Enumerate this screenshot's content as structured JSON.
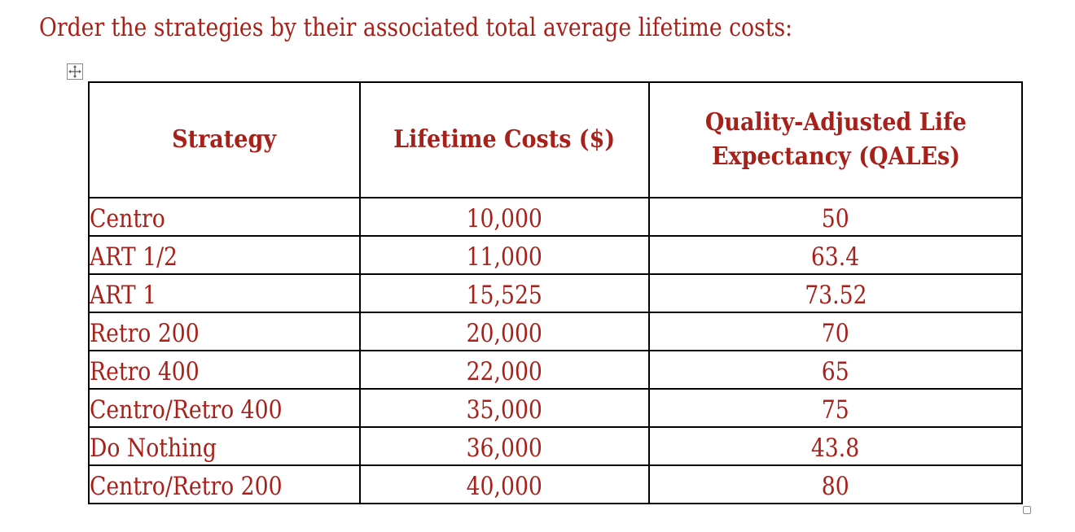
{
  "question": "Order the strategies by their associated total average lifetime costs:",
  "table": {
    "headers": {
      "strategy": "Strategy",
      "lifetime_costs": "Lifetime Costs ($)",
      "qale_line1": "Quality-Adjusted Life",
      "qale_line2": "Expectancy (QALEs)"
    },
    "rows": [
      {
        "strategy": "Centro",
        "cost": "10,000",
        "qale": "50"
      },
      {
        "strategy": "ART 1/2",
        "cost": "11,000",
        "qale": "63.4"
      },
      {
        "strategy": "ART 1",
        "cost": "15,525",
        "qale": "73.52"
      },
      {
        "strategy": "Retro 200",
        "cost": "20,000",
        "qale": "70"
      },
      {
        "strategy": "Retro 400",
        "cost": "22,000",
        "qale": "65"
      },
      {
        "strategy": "Centro/Retro 400",
        "cost": "35,000",
        "qale": "75"
      },
      {
        "strategy": "Do Nothing",
        "cost": "36,000",
        "qale": "43.8"
      },
      {
        "strategy": "Centro/Retro 200",
        "cost": "40,000",
        "qale": "80"
      }
    ]
  },
  "colors": {
    "text": "#a8201a",
    "border": "#000000",
    "background": "#ffffff"
  },
  "icons": {
    "table_move": "move-arrows-icon",
    "table_resize": "resize-square-icon"
  }
}
